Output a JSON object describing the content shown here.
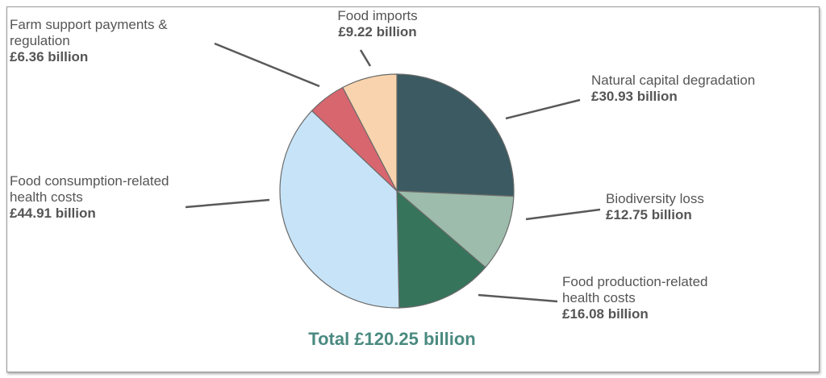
{
  "chart_data": {
    "type": "pie",
    "title": "",
    "total_label": "Total £120.25 billion",
    "slices": [
      {
        "name_lines": [
          "Natural capital degradation"
        ],
        "value_label": "£30.93 billion",
        "value": 30.93,
        "color": "#3b5a61"
      },
      {
        "name_lines": [
          "Biodiversity loss"
        ],
        "value_label": "£12.75 billion",
        "value": 12.75,
        "color": "#9dbcab"
      },
      {
        "name_lines": [
          "Food production-related",
          "health costs"
        ],
        "value_label": "£16.08 billion",
        "value": 16.08,
        "color": "#36745c"
      },
      {
        "name_lines": [
          "Food consumption-related",
          "health costs"
        ],
        "value_label": "£44.91 billion",
        "value": 44.91,
        "color": "#c7e3f7"
      },
      {
        "name_lines": [
          "Farm support payments &",
          "regulation"
        ],
        "value_label": "£6.36 billion",
        "value": 6.36,
        "color": "#d8666f"
      },
      {
        "name_lines": [
          "Food imports"
        ],
        "value_label": "£9.22 billion",
        "value": 9.22,
        "color": "#f8d3ad"
      }
    ],
    "total_color": "#4a8a80"
  }
}
